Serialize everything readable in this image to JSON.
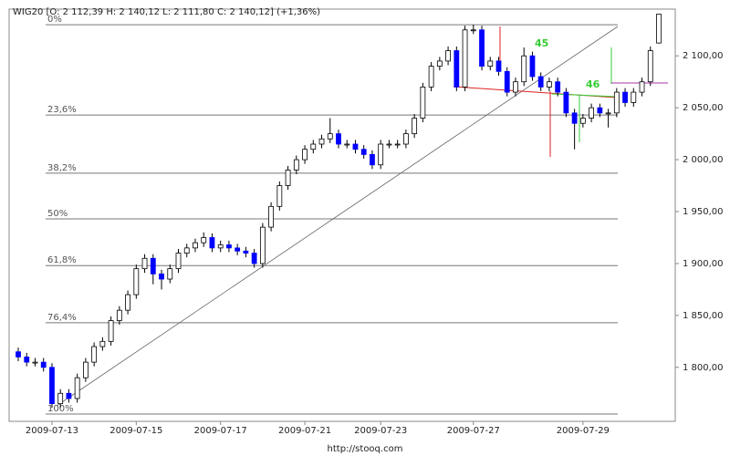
{
  "chart_data": {
    "type": "candlestick",
    "title": "WIG20 [O: 2 112,39  H: 2 140,12  L: 2 111,80  C: 2 140,12] (+1,36%)",
    "source": "http://stooq.com",
    "annotations": [
      "45",
      "46"
    ],
    "ylim": [
      1748,
      2145
    ],
    "yticks": [
      {
        "value": 1800,
        "label": "1 800,00"
      },
      {
        "value": 1850,
        "label": "1 850,00"
      },
      {
        "value": 1900,
        "label": "1 900,00"
      },
      {
        "value": 1950,
        "label": "1 950,00"
      },
      {
        "value": 2000,
        "label": "2 000,00"
      },
      {
        "value": 2050,
        "label": "2 050,00"
      },
      {
        "value": 2100,
        "label": "2 100,00"
      }
    ],
    "fib_levels": [
      {
        "value": 2130,
        "label": "0%"
      },
      {
        "value": 2043,
        "label": "23,6%"
      },
      {
        "value": 1987,
        "label": "38,2%"
      },
      {
        "value": 1943,
        "label": "50%"
      },
      {
        "value": 1898,
        "label": "61,8%"
      },
      {
        "value": 1843,
        "label": "76,4%"
      },
      {
        "value": 1755,
        "label": "100%"
      }
    ],
    "up_color": "#ffffff",
    "down_color": "#0000ff",
    "categories": [
      null,
      null,
      null,
      null,
      "2009-07-13",
      null,
      null,
      null,
      null,
      null,
      null,
      null,
      null,
      null,
      "2009-07-15",
      null,
      null,
      null,
      null,
      null,
      null,
      null,
      null,
      null,
      "2009-07-17",
      null,
      null,
      null,
      null,
      null,
      null,
      null,
      null,
      null,
      "2009-07-21",
      null,
      null,
      null,
      null,
      null,
      null,
      null,
      null,
      "2009-07-23",
      null,
      null,
      null,
      null,
      null,
      null,
      null,
      null,
      null,
      null,
      "2009-07-27",
      null,
      null,
      null,
      null,
      null,
      null,
      null,
      null,
      null,
      null,
      null,
      null,
      "2009-07-29",
      null,
      null,
      null,
      null,
      null,
      null,
      null,
      null,
      null
    ],
    "open": [
      1815,
      1810,
      1805,
      1805,
      1800,
      1765,
      1775,
      1770,
      1790,
      1805,
      1820,
      1825,
      1845,
      1855,
      1870,
      1895,
      1905,
      1890,
      1885,
      1895,
      1910,
      1915,
      1920,
      1925,
      1915,
      1918,
      1915,
      1912,
      1910,
      1900,
      1935,
      1955,
      1975,
      1990,
      2000,
      2010,
      2015,
      2020,
      2025,
      2015,
      2015,
      2010,
      2005,
      1995,
      2015,
      2015,
      2015,
      2025,
      2040,
      2070,
      2090,
      2095,
      2105,
      2070,
      2125,
      2125,
      2090,
      2095,
      2085,
      2065,
      2075,
      2100,
      2080,
      2070,
      2075,
      2065,
      2045,
      2035,
      2040,
      2050,
      2045,
      2045,
      2065,
      2055,
      2065,
      2075,
      2112.39
    ],
    "high": [
      1819,
      1814,
      1809,
      1809,
      1804,
      1779,
      1779,
      1794,
      1809,
      1824,
      1829,
      1849,
      1859,
      1874,
      1899,
      1909,
      1909,
      1894,
      1899,
      1914,
      1919,
      1924,
      1930,
      1929,
      1922,
      1922,
      1919,
      1916,
      1914,
      1939,
      1959,
      1979,
      1994,
      2004,
      2014,
      2019,
      2024,
      2040,
      2029,
      2019,
      2019,
      2014,
      2009,
      2019,
      2019,
      2019,
      2029,
      2044,
      2074,
      2094,
      2099,
      2109,
      2109,
      2129,
      2130,
      2129,
      2099,
      2099,
      2089,
      2079,
      2108,
      2104,
      2084,
      2079,
      2079,
      2069,
      2049,
      2044,
      2054,
      2054,
      2049,
      2069,
      2069,
      2069,
      2079,
      2109,
      2140.12
    ],
    "low": [
      1806,
      1801,
      1801,
      1796,
      1761,
      1761,
      1766,
      1766,
      1786,
      1801,
      1816,
      1821,
      1841,
      1851,
      1866,
      1891,
      1880,
      1875,
      1881,
      1891,
      1906,
      1911,
      1916,
      1911,
      1911,
      1911,
      1908,
      1906,
      1896,
      1896,
      1931,
      1951,
      1971,
      1986,
      1996,
      2006,
      2011,
      2016,
      2011,
      2011,
      2006,
      2001,
      1991,
      1991,
      2011,
      2011,
      2011,
      2021,
      2036,
      2066,
      2086,
      2091,
      2066,
      2066,
      2121,
      2086,
      2086,
      2081,
      2061,
      2061,
      2071,
      2076,
      2066,
      2066,
      2061,
      2041,
      2010,
      2031,
      2036,
      2041,
      2031,
      2041,
      2051,
      2051,
      2061,
      2071,
      2111.8
    ],
    "close": [
      1810,
      1805,
      1805,
      1800,
      1765,
      1775,
      1770,
      1790,
      1805,
      1820,
      1825,
      1845,
      1855,
      1870,
      1895,
      1905,
      1890,
      1885,
      1895,
      1910,
      1915,
      1920,
      1925,
      1915,
      1918,
      1915,
      1912,
      1910,
      1900,
      1935,
      1955,
      1975,
      1990,
      2000,
      2010,
      2015,
      2020,
      2025,
      2015,
      2015,
      2010,
      2005,
      1995,
      2015,
      2015,
      2015,
      2025,
      2040,
      2070,
      2090,
      2095,
      2105,
      2070,
      2125,
      2125,
      2090,
      2095,
      2085,
      2065,
      2075,
      2100,
      2080,
      2070,
      2075,
      2065,
      2045,
      2035,
      2040,
      2050,
      2045,
      2045,
      2065,
      2055,
      2065,
      2075,
      2105,
      2140.12
    ]
  }
}
